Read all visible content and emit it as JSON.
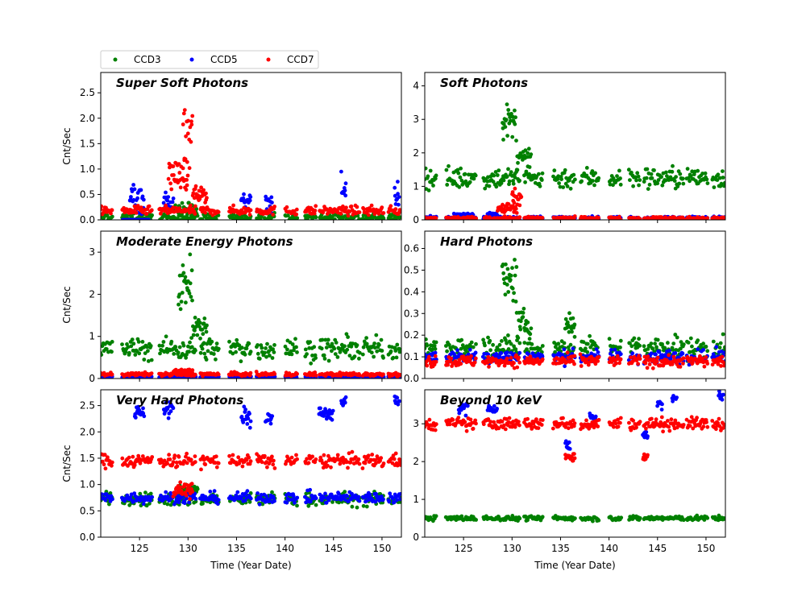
{
  "legend": {
    "entries": [
      {
        "label": "CCD3",
        "color": "#008000"
      },
      {
        "label": "CCD5",
        "color": "#0000ff"
      },
      {
        "label": "CCD7",
        "color": "#ff0000"
      }
    ]
  },
  "chart_data": [
    {
      "type": "scatter",
      "title": "Super Soft Photons",
      "xlabel": "",
      "ylabel": "Cnt/Sec",
      "xlim": [
        121,
        152
      ],
      "ylim": [
        0,
        2.9
      ],
      "yticks": [
        0,
        0.5,
        1.0,
        1.5,
        2.0,
        2.5
      ],
      "xticks": [
        125,
        130,
        135,
        140,
        145,
        150
      ],
      "show_xticklabels": false,
      "series": [
        {
          "name": "CCD3",
          "color": "#008000",
          "bands": [
            [
              121,
              152,
              0.05,
              0.08
            ]
          ],
          "flares": [
            [
              128.5,
              131,
              0.2,
              0.15
            ]
          ]
        },
        {
          "name": "CCD5",
          "color": "#0000ff",
          "bands": [
            [
              123,
              126,
              0.0,
              0.0
            ]
          ],
          "flares": [
            [
              124,
              125.5,
              0.45,
              0.3
            ],
            [
              127.5,
              128.5,
              0.35,
              0.2
            ],
            [
              135.5,
              136.5,
              0.35,
              0.15
            ],
            [
              138,
              138.7,
              0.35,
              0.2
            ],
            [
              145.8,
              146.3,
              0.6,
              0.3
            ],
            [
              151.3,
              151.8,
              0.5,
              0.25
            ]
          ]
        },
        {
          "name": "CCD7",
          "color": "#ff0000",
          "bands": [
            [
              121,
              152,
              0.18,
              0.08
            ]
          ],
          "flares": [
            [
              128,
              130,
              0.9,
              0.3
            ],
            [
              129.5,
              130.5,
              1.6,
              0.6
            ],
            [
              130.5,
              132,
              0.5,
              0.15
            ]
          ]
        }
      ]
    },
    {
      "type": "scatter",
      "title": "Soft Photons",
      "xlabel": "",
      "ylabel": "",
      "xlim": [
        121,
        152
      ],
      "ylim": [
        0,
        4.4
      ],
      "yticks": [
        0,
        1,
        2,
        3,
        4
      ],
      "xticks": [
        125,
        130,
        135,
        140,
        145,
        150
      ],
      "show_xticklabels": false,
      "series": [
        {
          "name": "CCD3",
          "color": "#008000",
          "bands": [
            [
              121,
              152,
              1.25,
              0.3
            ]
          ],
          "flares": [
            [
              129,
              130.5,
              2.9,
              0.5
            ],
            [
              130.5,
              132,
              1.8,
              0.3
            ]
          ]
        },
        {
          "name": "CCD5",
          "color": "#0000ff",
          "bands": [
            [
              121,
              152,
              0.06,
              0.04
            ]
          ],
          "flares": [
            [
              124,
              126,
              0.15,
              0.05
            ],
            [
              127.5,
              128.5,
              0.15,
              0.05
            ]
          ]
        },
        {
          "name": "CCD7",
          "color": "#ff0000",
          "bands": [
            [
              121,
              152,
              0.05,
              0.04
            ]
          ],
          "flares": [
            [
              128.5,
              130.5,
              0.35,
              0.15
            ],
            [
              130,
              131,
              0.7,
              0.2
            ]
          ]
        }
      ]
    },
    {
      "type": "scatter",
      "title": "Moderate Energy Photons",
      "xlabel": "",
      "ylabel": "Cnt/Sec",
      "xlim": [
        121,
        152
      ],
      "ylim": [
        0,
        3.5
      ],
      "yticks": [
        0,
        1,
        2,
        3
      ],
      "xticks": [
        125,
        130,
        135,
        140,
        145,
        150
      ],
      "show_xticklabels": false,
      "series": [
        {
          "name": "CCD3",
          "color": "#008000",
          "bands": [
            [
              121,
              152,
              0.7,
              0.25
            ]
          ],
          "flares": [
            [
              129,
              130.5,
              2.2,
              0.5
            ],
            [
              130.5,
              132,
              1.2,
              0.3
            ]
          ]
        },
        {
          "name": "CCD5",
          "color": "#0000ff",
          "bands": [
            [
              121,
              152,
              0.04,
              0.02
            ]
          ],
          "flares": []
        },
        {
          "name": "CCD7",
          "color": "#ff0000",
          "bands": [
            [
              121,
              152,
              0.1,
              0.04
            ]
          ],
          "flares": [
            [
              128.5,
              130.5,
              0.17,
              0.04
            ]
          ]
        }
      ]
    },
    {
      "type": "scatter",
      "title": "Hard Photons",
      "xlabel": "",
      "ylabel": "",
      "xlim": [
        121,
        152
      ],
      "ylim": [
        0,
        0.68
      ],
      "yticks": [
        0.0,
        0.1,
        0.2,
        0.3,
        0.4,
        0.5,
        0.6
      ],
      "xticks": [
        125,
        130,
        135,
        140,
        145,
        150
      ],
      "show_xticklabels": false,
      "series": [
        {
          "name": "CCD3",
          "color": "#008000",
          "bands": [
            [
              121,
              152,
              0.14,
              0.05
            ]
          ],
          "flares": [
            [
              129,
              130.5,
              0.45,
              0.1
            ],
            [
              130.5,
              132,
              0.25,
              0.06
            ],
            [
              135.5,
              136.5,
              0.25,
              0.05
            ]
          ]
        },
        {
          "name": "CCD5",
          "color": "#0000ff",
          "bands": [
            [
              121,
              152,
              0.1,
              0.03
            ]
          ],
          "flares": []
        },
        {
          "name": "CCD7",
          "color": "#ff0000",
          "bands": [
            [
              121,
              152,
              0.08,
              0.025
            ]
          ],
          "flares": []
        }
      ]
    },
    {
      "type": "scatter",
      "title": "Very Hard Photons",
      "xlabel": "Time (Year Date)",
      "ylabel": "Cnt/Sec",
      "xlim": [
        121,
        152
      ],
      "ylim": [
        0,
        2.8
      ],
      "yticks": [
        0.0,
        0.5,
        1.0,
        1.5,
        2.0,
        2.5
      ],
      "xticks": [
        125,
        130,
        135,
        140,
        145,
        150
      ],
      "show_xticklabels": true,
      "series": [
        {
          "name": "CCD3",
          "color": "#008000",
          "bands": [
            [
              121,
              152,
              0.72,
              0.12
            ]
          ],
          "flares": [
            [
              129,
              131,
              0.9,
              0.1
            ]
          ]
        },
        {
          "name": "CCD5",
          "color": "#0000ff",
          "bands": [
            [
              121,
              152,
              0.75,
              0.1
            ]
          ],
          "flares": [
            [
              124.5,
              125.5,
              2.4,
              0.12
            ],
            [
              127.5,
              128.5,
              2.45,
              0.15
            ],
            [
              135.5,
              136.5,
              2.3,
              0.2
            ],
            [
              138,
              138.7,
              2.25,
              0.15
            ],
            [
              143.5,
              145,
              2.35,
              0.12
            ],
            [
              145.8,
              146.3,
              2.55,
              0.1
            ],
            [
              151.3,
              151.8,
              2.6,
              0.12
            ]
          ]
        },
        {
          "name": "CCD7",
          "color": "#ff0000",
          "bands": [
            [
              121,
              152,
              1.45,
              0.12
            ]
          ],
          "flares": [
            [
              128.5,
              130.5,
              0.9,
              0.15
            ]
          ]
        }
      ]
    },
    {
      "type": "scatter",
      "title": "Beyond 10 keV",
      "xlabel": "Time (Year Date)",
      "ylabel": "",
      "xlim": [
        121,
        152
      ],
      "ylim": [
        0,
        3.9
      ],
      "yticks": [
        0,
        1,
        2,
        3
      ],
      "xticks": [
        125,
        130,
        135,
        140,
        145,
        150
      ],
      "show_xticklabels": true,
      "series": [
        {
          "name": "CCD3",
          "color": "#008000",
          "bands": [
            [
              121,
              152,
              0.5,
              0.06
            ]
          ],
          "flares": []
        },
        {
          "name": "CCD5",
          "color": "#0000ff",
          "bands": [],
          "flares": [
            [
              124.5,
              125.5,
              3.4,
              0.15
            ],
            [
              127.5,
              128.5,
              3.4,
              0.15
            ],
            [
              135.5,
              136,
              2.4,
              0.15
            ],
            [
              138,
              138.7,
              3.2,
              0.1
            ],
            [
              143.5,
              144,
              2.7,
              0.1
            ],
            [
              145,
              145.5,
              3.5,
              0.1
            ],
            [
              146.5,
              147,
              3.7,
              0.1
            ],
            [
              151.3,
              151.8,
              3.7,
              0.15
            ]
          ]
        },
        {
          "name": "CCD7",
          "color": "#ff0000",
          "bands": [
            [
              121,
              152,
              3.0,
              0.15
            ]
          ],
          "flares": [
            [
              135.5,
              136.5,
              2.1,
              0.1
            ],
            [
              143.5,
              144,
              2.1,
              0.1
            ]
          ]
        }
      ]
    }
  ]
}
